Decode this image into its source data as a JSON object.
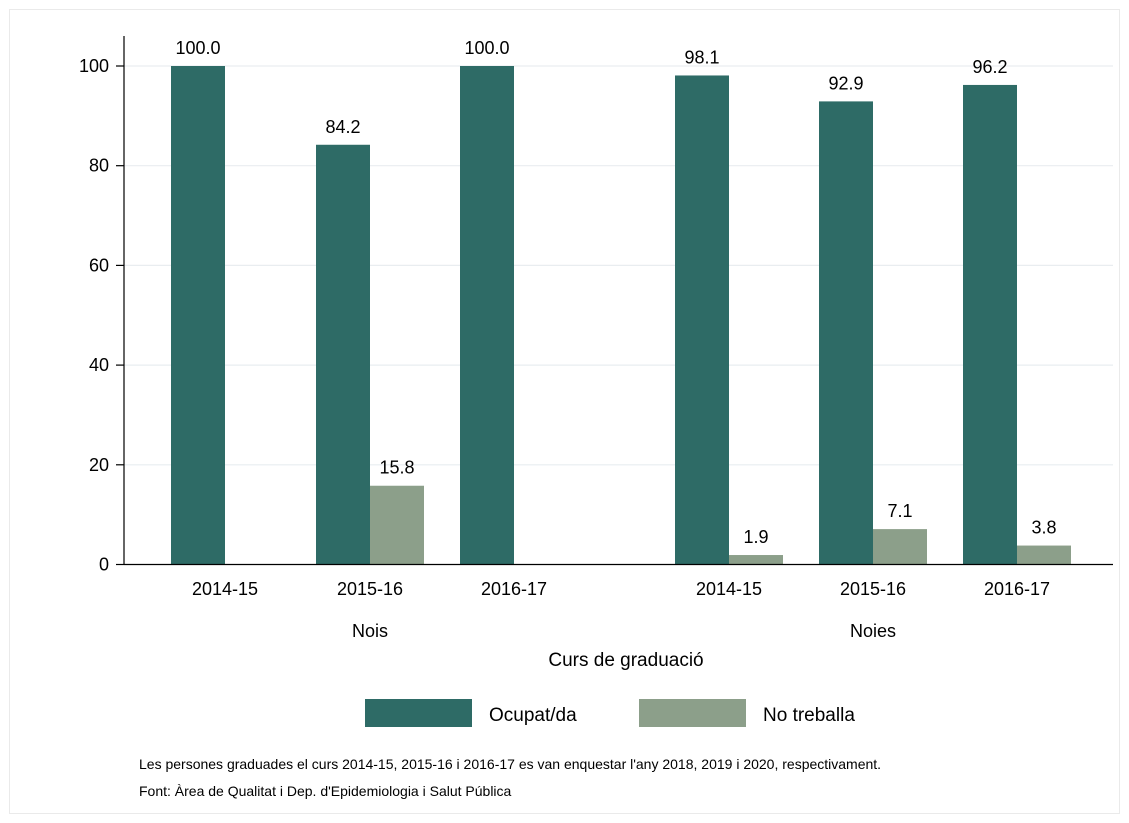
{
  "chart_data": {
    "type": "bar",
    "xlabel": "Curs de graduació",
    "ylabel": "",
    "ylim": [
      0,
      105
    ],
    "yticks": [
      0,
      20,
      40,
      60,
      80,
      100
    ],
    "grid": true,
    "legend_position": "bottom",
    "groups": [
      {
        "name": "Nois",
        "categories": [
          "2014-15",
          "2015-16",
          "2016-17"
        ],
        "series": [
          {
            "name": "Ocupat/da",
            "values": [
              100.0,
              84.2,
              100.0
            ],
            "labels": [
              "100.0",
              "84.2",
              "100.0"
            ]
          },
          {
            "name": "No treballa",
            "values": [
              null,
              15.8,
              null
            ],
            "labels": [
              "",
              "15.8",
              ""
            ]
          }
        ]
      },
      {
        "name": "Noies",
        "categories": [
          "2014-15",
          "2015-16",
          "2016-17"
        ],
        "series": [
          {
            "name": "Ocupat/da",
            "values": [
              98.1,
              92.9,
              96.2
            ],
            "labels": [
              "98.1",
              "92.9",
              "96.2"
            ]
          },
          {
            "name": "No treballa",
            "values": [
              1.9,
              7.1,
              3.8
            ],
            "labels": [
              "1.9",
              "7.1",
              "3.8"
            ]
          }
        ]
      }
    ],
    "series_colors": [
      "#2e6b66",
      "#8c9f8a"
    ],
    "legend": [
      "Ocupat/da",
      "No treballa"
    ]
  },
  "notes": {
    "line1": "Les persones graduades el curs 2014-15, 2015-16 i 2016-17 es van enquestar l'any 2018, 2019 i 2020, respectivament.",
    "line2": "Font: Àrea de Qualitat i Dep. d'Epidemiologia i Salut Pública"
  }
}
